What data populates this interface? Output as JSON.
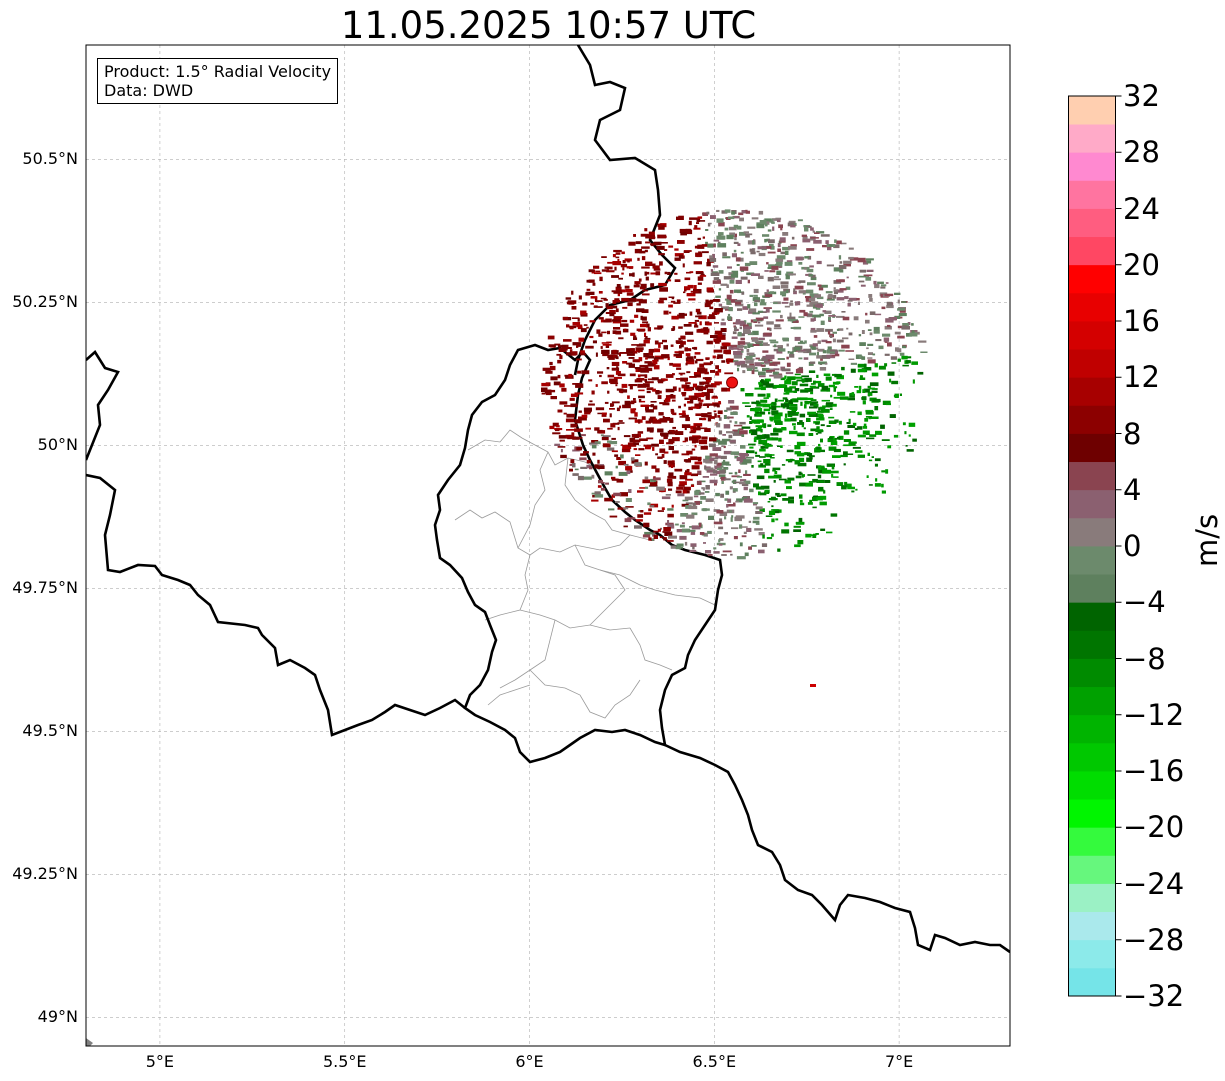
{
  "title": "11.05.2025 10:57 UTC",
  "info": {
    "product": "Product: 1.5° Radial Velocity",
    "data": "Data: DWD"
  },
  "map": {
    "extent": {
      "lon_min": 4.8,
      "lon_max": 7.3,
      "lat_min": 48.95,
      "lat_max": 50.7
    },
    "x_ticks": [
      {
        "lon": 5.0,
        "label": "5°E"
      },
      {
        "lon": 5.5,
        "label": "5.5°E"
      },
      {
        "lon": 6.0,
        "label": "6°E"
      },
      {
        "lon": 6.5,
        "label": "6.5°E"
      },
      {
        "lon": 7.0,
        "label": "7°E"
      }
    ],
    "y_ticks": [
      {
        "lat": 50.5,
        "label": "50.5°N"
      },
      {
        "lat": 50.25,
        "label": "50.25°N"
      },
      {
        "lat": 50.0,
        "label": "50°N"
      },
      {
        "lat": 49.75,
        "label": "49.75°N"
      },
      {
        "lat": 49.5,
        "label": "49.5°N"
      },
      {
        "lat": 49.25,
        "label": "49.25°N"
      },
      {
        "lat": 49.0,
        "label": "49°N"
      }
    ],
    "radar_site": {
      "lon": 6.548,
      "lat": 50.11,
      "color": "#ee1111"
    },
    "grid_on": true
  },
  "colorbar": {
    "label": "m/s",
    "min": -32,
    "max": 32,
    "ticks": [
      "32",
      "28",
      "24",
      "20",
      "16",
      "12",
      "8",
      "4",
      "0",
      "−4",
      "−8",
      "−12",
      "−16",
      "−20",
      "−24",
      "−28",
      "−32"
    ],
    "colors": [
      "#75e4e8",
      "#8ceaea",
      "#aae9ec",
      "#9bf1c5",
      "#66f77d",
      "#34fa3d",
      "#00f500",
      "#00dd00",
      "#00c800",
      "#00b400",
      "#00a100",
      "#008b00",
      "#007500",
      "#006400",
      "#5e805e",
      "#6c8a6c",
      "#897b7b",
      "#8b6070",
      "#8a4450",
      "#6e0000",
      "#8c0000",
      "#a70000",
      "#c00000",
      "#d40000",
      "#e80000",
      "#ff0000",
      "#ff4763",
      "#ff5d80",
      "#ff74a0",
      "#ff89d0",
      "#ffaac8",
      "#ffcfb0"
    ]
  }
}
